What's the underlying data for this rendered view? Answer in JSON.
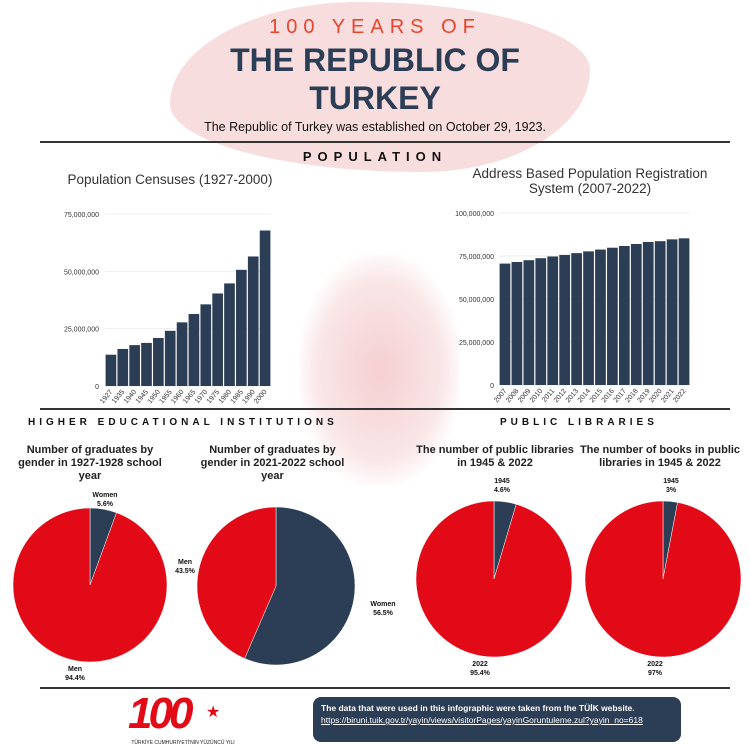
{
  "header": {
    "kicker": "100 YEARS OF",
    "title_line1": "THE REPUBLIC OF",
    "title_line2": "TURKEY",
    "subtitle": "The Republic of Turkey was established on October 29, 1923."
  },
  "sections": {
    "population": "POPULATION",
    "higher_ed": "HIGHER EDUCATIONAL INSTITUTIONS",
    "libraries": "PUBLIC LIBRARIES"
  },
  "colors": {
    "navy": "#2c3e55",
    "red": "#e30a17"
  },
  "chart_data": [
    {
      "type": "bar",
      "title": "Population Censuses (1927-2000)",
      "categories": [
        "1927",
        "1935",
        "1940",
        "1945",
        "1950",
        "1955",
        "1960",
        "1965",
        "1970",
        "1975",
        "1980",
        "1985",
        "1990",
        "2000"
      ],
      "values": [
        13648270,
        16158018,
        17820950,
        18790174,
        20947188,
        24064763,
        27754820,
        31391421,
        35605176,
        40347719,
        44736957,
        50664458,
        56473035,
        67803927
      ],
      "yticks": [
        "0",
        "25,000,000",
        "50,000,000",
        "75,000,000"
      ],
      "ylim": [
        0,
        75000000
      ]
    },
    {
      "type": "bar",
      "title": "Address Based Population Registration System (2007-2022)",
      "categories": [
        "2007",
        "2008",
        "2009",
        "2010",
        "2011",
        "2012",
        "2013",
        "2014",
        "2015",
        "2016",
        "2017",
        "2018",
        "2019",
        "2020",
        "2021",
        "2022"
      ],
      "values": [
        70586256,
        71517100,
        72561312,
        73722988,
        74724269,
        75627384,
        76667864,
        77695904,
        78741053,
        79814871,
        80810525,
        82003882,
        83154997,
        83614362,
        84680273,
        85279553
      ],
      "yticks": [
        "0",
        "25,000,000",
        "50,000,000",
        "75,000,000",
        "100,000,000"
      ],
      "ylim": [
        0,
        100000000
      ]
    },
    {
      "type": "pie",
      "title": "Number of graduates by gender in 1927-1928 school year",
      "slices": [
        {
          "name": "Women",
          "value": 5.6,
          "label": "5.6%"
        },
        {
          "name": "Men",
          "value": 94.4,
          "label": "94.4%"
        }
      ]
    },
    {
      "type": "pie",
      "title": "Number of graduates by gender in 2021-2022 school year",
      "slices": [
        {
          "name": "Women",
          "value": 56.5,
          "label": "56.5%"
        },
        {
          "name": "Men",
          "value": 43.5,
          "label": "43.5%"
        }
      ]
    },
    {
      "type": "pie",
      "title": "The number of public libraries in 1945 & 2022",
      "slices": [
        {
          "name": "1945",
          "value": 4.6,
          "label": "4.6%"
        },
        {
          "name": "2022",
          "value": 95.4,
          "label": "95.4%"
        }
      ]
    },
    {
      "type": "pie",
      "title": "The number of books in public libraries in 1945 & 2022",
      "slices": [
        {
          "name": "1945",
          "value": 3,
          "label": "3%"
        },
        {
          "name": "2022",
          "value": 97,
          "label": "97%"
        }
      ]
    }
  ],
  "footer": {
    "logo_text": "100",
    "logo_caption": "TÜRKİYE CUMHURİYETİ'NİN YÜZÜNCÜ YILI",
    "source_text": "The data that were used in this infographic were taken from the TÜİK website.",
    "source_url": "https://biruni.tuik.gov.tr/yayin/views/visitorPages/yayinGoruntuleme.zul?yayin_no=618"
  }
}
